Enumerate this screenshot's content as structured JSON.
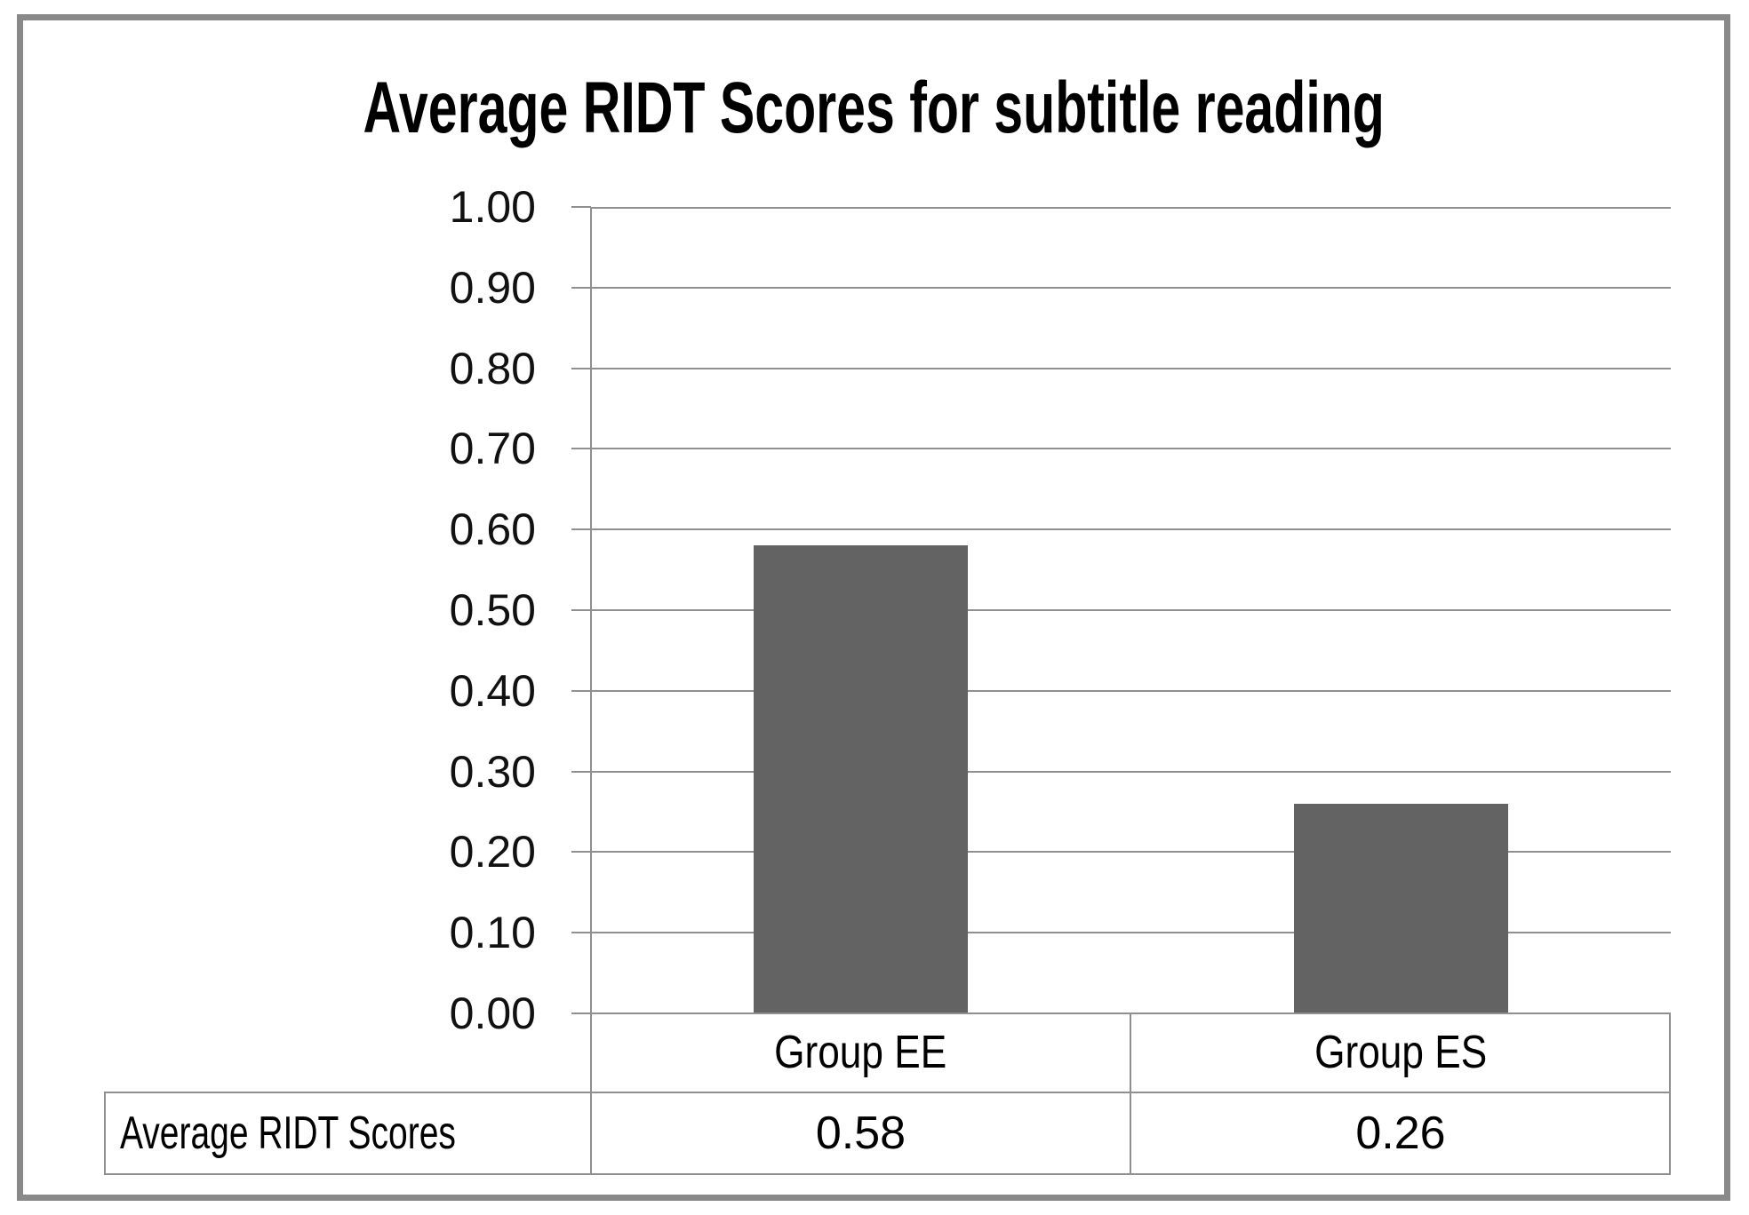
{
  "chart_data": {
    "type": "bar",
    "title": "Average RIDT Scores for subtitle reading",
    "categories": [
      "Group EE",
      "Group ES"
    ],
    "series": [
      {
        "name": "Average RIDT Scores",
        "values": [
          0.58,
          0.26
        ],
        "value_labels": [
          "0.58",
          "0.26"
        ]
      }
    ],
    "ylim": [
      0.0,
      1.0
    ],
    "ytick_step": 0.1,
    "ytick_labels": [
      "0.00",
      "0.10",
      "0.20",
      "0.30",
      "0.40",
      "0.50",
      "0.60",
      "0.70",
      "0.80",
      "0.90",
      "1.00"
    ],
    "grid": true,
    "legend": "none",
    "data_table": {
      "row_header": "Average RIDT Scores",
      "column_headers": [
        "Group EE",
        "Group ES"
      ],
      "values": [
        "0.58",
        "0.26"
      ]
    },
    "colors": {
      "bar": "#636363",
      "line": "#8f8f8f",
      "frame": "#898989",
      "text": "#000000",
      "background": "#ffffff"
    }
  }
}
